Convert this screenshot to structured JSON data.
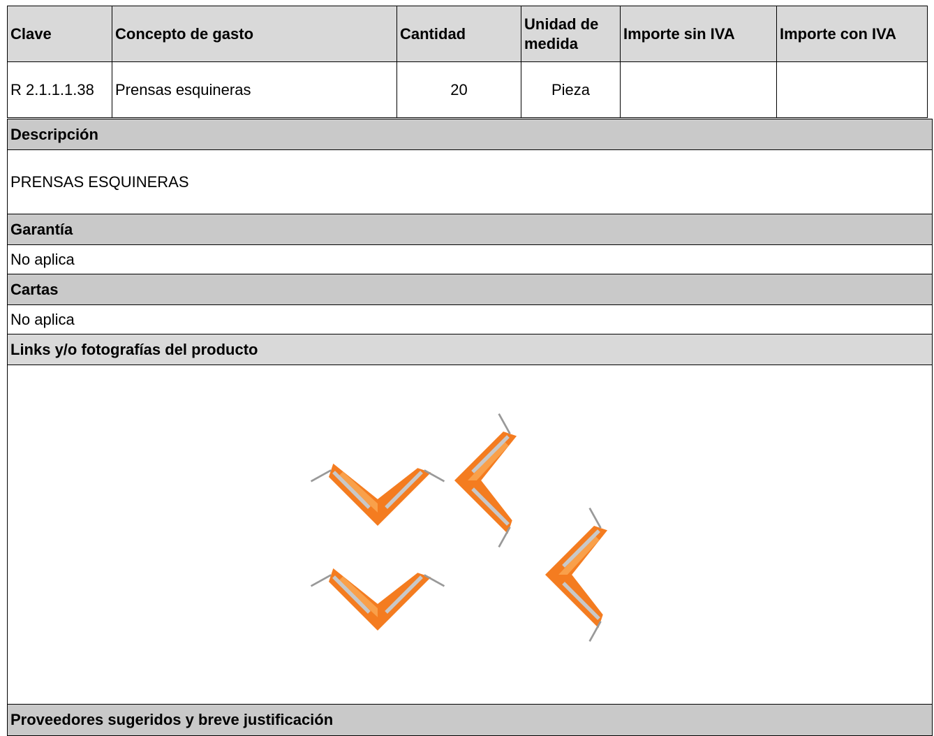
{
  "table": {
    "columns": [
      "Clave",
      "Concepto de gasto",
      "Cantidad",
      "Unidad de medida",
      "Importe sin IVA",
      "Importe con IVA"
    ],
    "row": [
      "R 2.1.1.1.38",
      "Prensas esquineras",
      20,
      "Pieza"
    ]
  },
  "sections": [
    {
      "title": "Descripción",
      "body": "PRENSAS ESQUINERAS"
    },
    {
      "title": "Garantía",
      "body": "No aplica"
    },
    {
      "title": "Cartas",
      "body": "No aplica"
    },
    {
      "title": "Links y/o fotografías del producto"
    },
    {
      "title": "Proveedores sugeridos y breve justificación"
    }
  ]
}
